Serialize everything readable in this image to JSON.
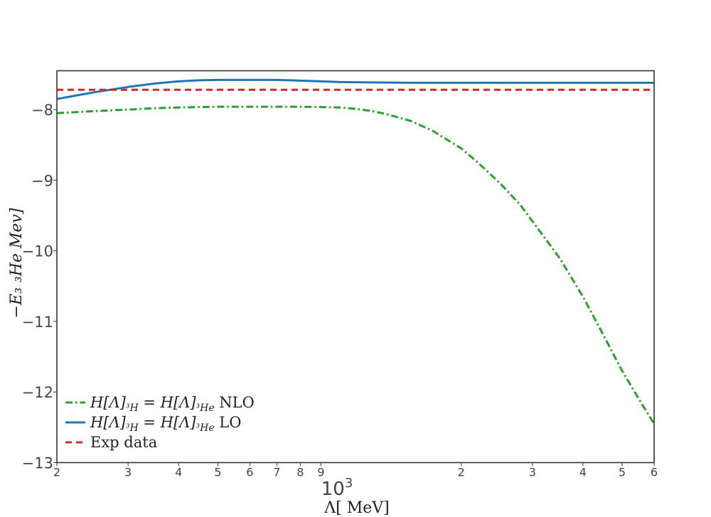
{
  "chart_data": {
    "type": "line",
    "xscale": "log",
    "xlim": [
      200,
      6000
    ],
    "ylim": [
      -13,
      -7.45
    ],
    "xlabel": "Λ[ MeV]",
    "ylabel": "−E₃ ₃He Mev]",
    "x_ticks": [
      200,
      300,
      400,
      500,
      600,
      700,
      800,
      900,
      2000,
      3000,
      4000,
      5000,
      6000
    ],
    "x_tick_labels": [
      "2",
      "3",
      "4",
      "5",
      "6",
      "7",
      "8",
      "9",
      "2",
      "3",
      "4",
      "5",
      "6"
    ],
    "x_decade_label": "10",
    "x_decade_exp": "3",
    "y_ticks": [
      -8,
      -9,
      -10,
      -11,
      -12,
      -13
    ],
    "y_tick_labels": [
      "−8",
      "−9",
      "−10",
      "−11",
      "−12",
      "−13"
    ],
    "legend_position": "bottom-left",
    "grid": false,
    "series": [
      {
        "name": "H[Λ]³H = H[Λ]³He NLO",
        "legend_main": "H[Λ]",
        "legend_sub1": "³H",
        "legend_mid": " = H[Λ]",
        "legend_sub2": "³He",
        "legend_tail": " NLO",
        "color": "#2ca02c",
        "dash": "dashdot",
        "x": [
          200,
          250,
          300,
          350,
          400,
          450,
          500,
          600,
          700,
          800,
          900,
          1000,
          1100,
          1200,
          1300,
          1500,
          1700,
          2000,
          2200,
          2500,
          2800,
          3000,
          3500,
          4000,
          4500,
          5000,
          5500,
          6000
        ],
        "y": [
          -8.05,
          -8.02,
          -8.0,
          -7.98,
          -7.97,
          -7.965,
          -7.96,
          -7.96,
          -7.96,
          -7.96,
          -7.965,
          -7.97,
          -7.99,
          -8.02,
          -8.06,
          -8.16,
          -8.3,
          -8.55,
          -8.75,
          -9.05,
          -9.35,
          -9.58,
          -10.1,
          -10.65,
          -11.2,
          -11.7,
          -12.1,
          -12.45
        ]
      },
      {
        "name": "H[Λ]³H = H[Λ]³He LO",
        "legend_main": "H[Λ]",
        "legend_sub1": "³H",
        "legend_mid": " = H[Λ]",
        "legend_sub2": "³He",
        "legend_tail": " LO",
        "color": "#1f77b4",
        "dash": "solid",
        "x": [
          200,
          250,
          300,
          350,
          400,
          450,
          500,
          600,
          700,
          800,
          900,
          1000,
          1200,
          1500,
          2000,
          3000,
          4000,
          6000
        ],
        "y": [
          -7.85,
          -7.75,
          -7.68,
          -7.63,
          -7.6,
          -7.585,
          -7.58,
          -7.58,
          -7.58,
          -7.59,
          -7.6,
          -7.61,
          -7.615,
          -7.62,
          -7.62,
          -7.62,
          -7.62,
          -7.62
        ]
      },
      {
        "name": "Exp data",
        "legend_label": "Exp data",
        "color": "#d62728",
        "dash": "dashed",
        "x": [
          200,
          6000
        ],
        "y": [
          -7.72,
          -7.72
        ]
      }
    ]
  }
}
